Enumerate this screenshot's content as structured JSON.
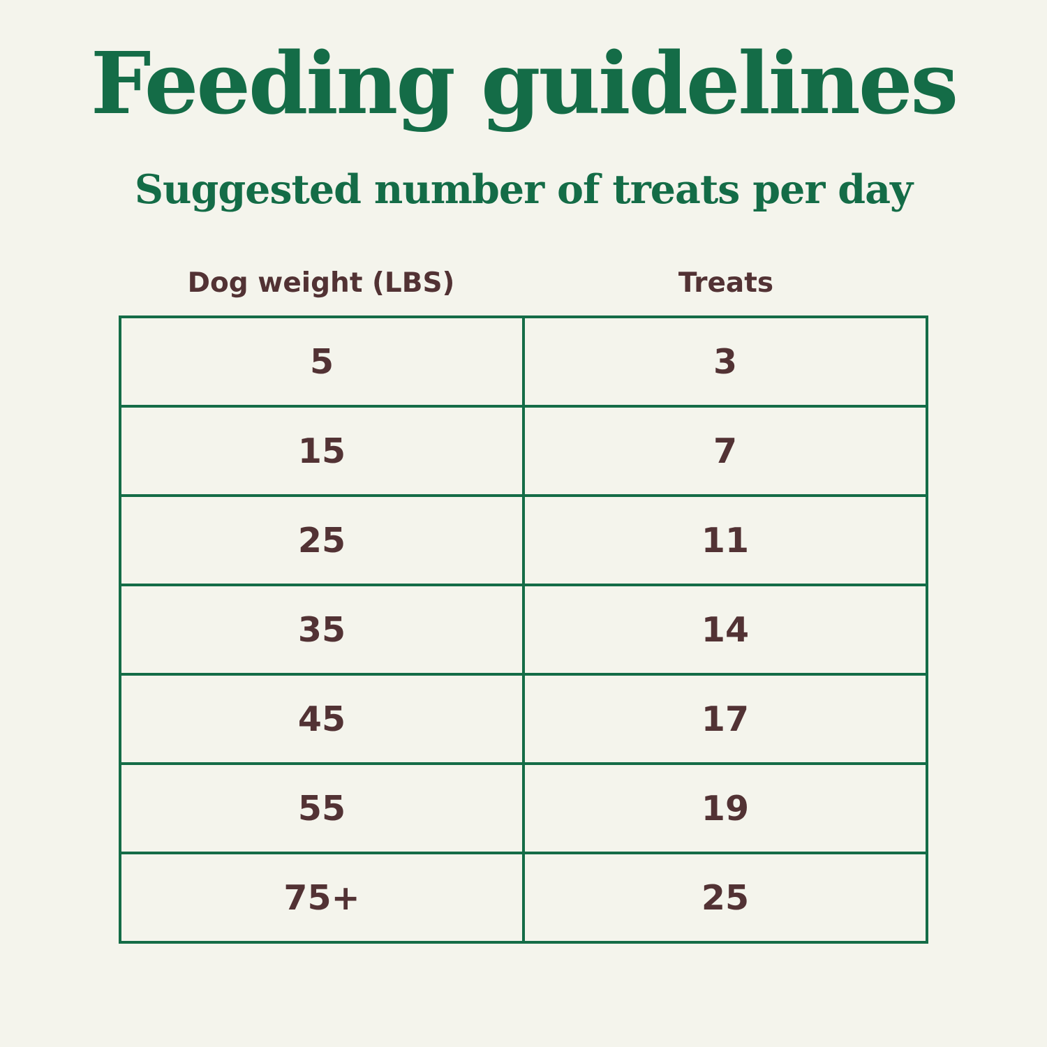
{
  "page": {
    "title": "Feeding guidelines",
    "subtitle": "Suggested number of treats per day"
  },
  "table": {
    "columns": [
      "Dog weight (LBS)",
      "Treats"
    ],
    "rows": [
      {
        "weight": "5",
        "treats": "3"
      },
      {
        "weight": "15",
        "treats": "7"
      },
      {
        "weight": "25",
        "treats": "11"
      },
      {
        "weight": "35",
        "treats": "14"
      },
      {
        "weight": "45",
        "treats": "17"
      },
      {
        "weight": "55",
        "treats": "19"
      },
      {
        "weight": "75+",
        "treats": "25"
      }
    ]
  },
  "colors": {
    "background": "#F4F4EC",
    "accent_green": "#146C47",
    "text_brown": "#523234"
  }
}
